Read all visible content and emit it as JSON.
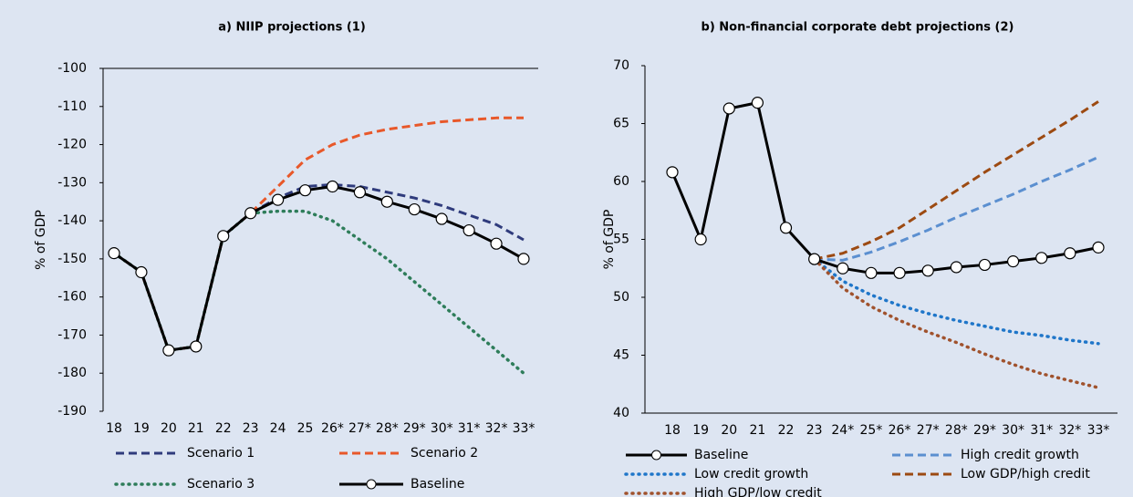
{
  "chart_data": [
    {
      "type": "line",
      "title": "a) NIIP projections (1)",
      "y_label": "% of GDP",
      "categories": [
        "18",
        "19",
        "20",
        "21",
        "22",
        "23",
        "24",
        "25",
        "26*",
        "27*",
        "28*",
        "29*",
        "30*",
        "31*",
        "32*",
        "33*"
      ],
      "ylim": [
        -190,
        -100
      ],
      "yticks": [
        -190,
        -180,
        -170,
        -160,
        -150,
        -140,
        -130,
        -120,
        -110,
        -100
      ],
      "series": [
        {
          "name": "Scenario 1",
          "color": "#2f3b7c",
          "dash": "dashed",
          "values": [
            -148.5,
            -153.5,
            -174,
            -173,
            -144,
            -138,
            -134,
            -131,
            -130.5,
            -131,
            -132.5,
            -134,
            -136,
            -138.5,
            -141,
            -145
          ]
        },
        {
          "name": "Scenario 2",
          "color": "#e8582a",
          "dash": "dashed",
          "values": [
            -148.5,
            -153.5,
            -174,
            -173,
            -144,
            -138,
            -131,
            -124,
            -120,
            -117.5,
            -116,
            -115,
            -114,
            -113.5,
            -113,
            -113
          ]
        },
        {
          "name": "Scenario 3",
          "color": "#2e7d5a",
          "dash": "dotted",
          "values": [
            -148.5,
            -153.5,
            -174,
            -173,
            -144,
            -138,
            -137.5,
            -137.5,
            -140,
            -145,
            -150,
            -156,
            -162,
            -168,
            -174,
            -180
          ]
        },
        {
          "name": "Baseline",
          "color": "#000000",
          "dash": "solid",
          "marker": "circle",
          "values": [
            -148.5,
            -153.5,
            -174,
            -173,
            -144,
            -138,
            -134.5,
            -132,
            -131,
            -132.5,
            -135,
            -137,
            -139.5,
            -142.5,
            -146,
            -150
          ]
        }
      ]
    },
    {
      "type": "line",
      "title": "b) Non-financial corporate debt projections (2)",
      "y_label": "% of GDP",
      "categories": [
        "18",
        "19",
        "20",
        "21",
        "22",
        "23",
        "24*",
        "25*",
        "26*",
        "27*",
        "28*",
        "29*",
        "30*",
        "31*",
        "32*",
        "33*"
      ],
      "ylim": [
        40,
        70
      ],
      "yticks": [
        40,
        45,
        50,
        55,
        60,
        65,
        70
      ],
      "series": [
        {
          "name": "Baseline",
          "color": "#000000",
          "dash": "solid",
          "marker": "circle",
          "values": [
            60.8,
            55,
            66.3,
            66.8,
            56,
            53.3,
            52.5,
            52.1,
            52.1,
            52.3,
            52.6,
            52.8,
            53.1,
            53.4,
            53.8,
            54.3
          ]
        },
        {
          "name": "High credit growth",
          "color": "#5b8fd0",
          "dash": "dashed",
          "values": [
            null,
            null,
            null,
            null,
            null,
            53.3,
            53.2,
            53.9,
            54.8,
            55.8,
            56.9,
            57.9,
            58.9,
            60,
            61,
            62.1
          ]
        },
        {
          "name": "Low credit growth",
          "color": "#1f76c9",
          "dash": "dotted",
          "values": [
            null,
            null,
            null,
            null,
            null,
            53.3,
            51.4,
            50.2,
            49.3,
            48.6,
            48,
            47.5,
            47,
            46.7,
            46.3,
            46
          ]
        },
        {
          "name": "Low GDP/high credit",
          "color": "#9c4a12",
          "dash": "dashed",
          "values": [
            null,
            null,
            null,
            null,
            null,
            53.3,
            53.8,
            54.8,
            56,
            57.6,
            59.2,
            60.8,
            62.3,
            63.8,
            65.3,
            66.9
          ]
        },
        {
          "name": "High GDP/low credit",
          "color": "#a0522d",
          "dash": "dotted",
          "values": [
            null,
            null,
            null,
            null,
            null,
            53.3,
            50.8,
            49.2,
            48,
            47,
            46.1,
            45.1,
            44.2,
            43.4,
            42.8,
            42.2
          ]
        }
      ]
    }
  ]
}
